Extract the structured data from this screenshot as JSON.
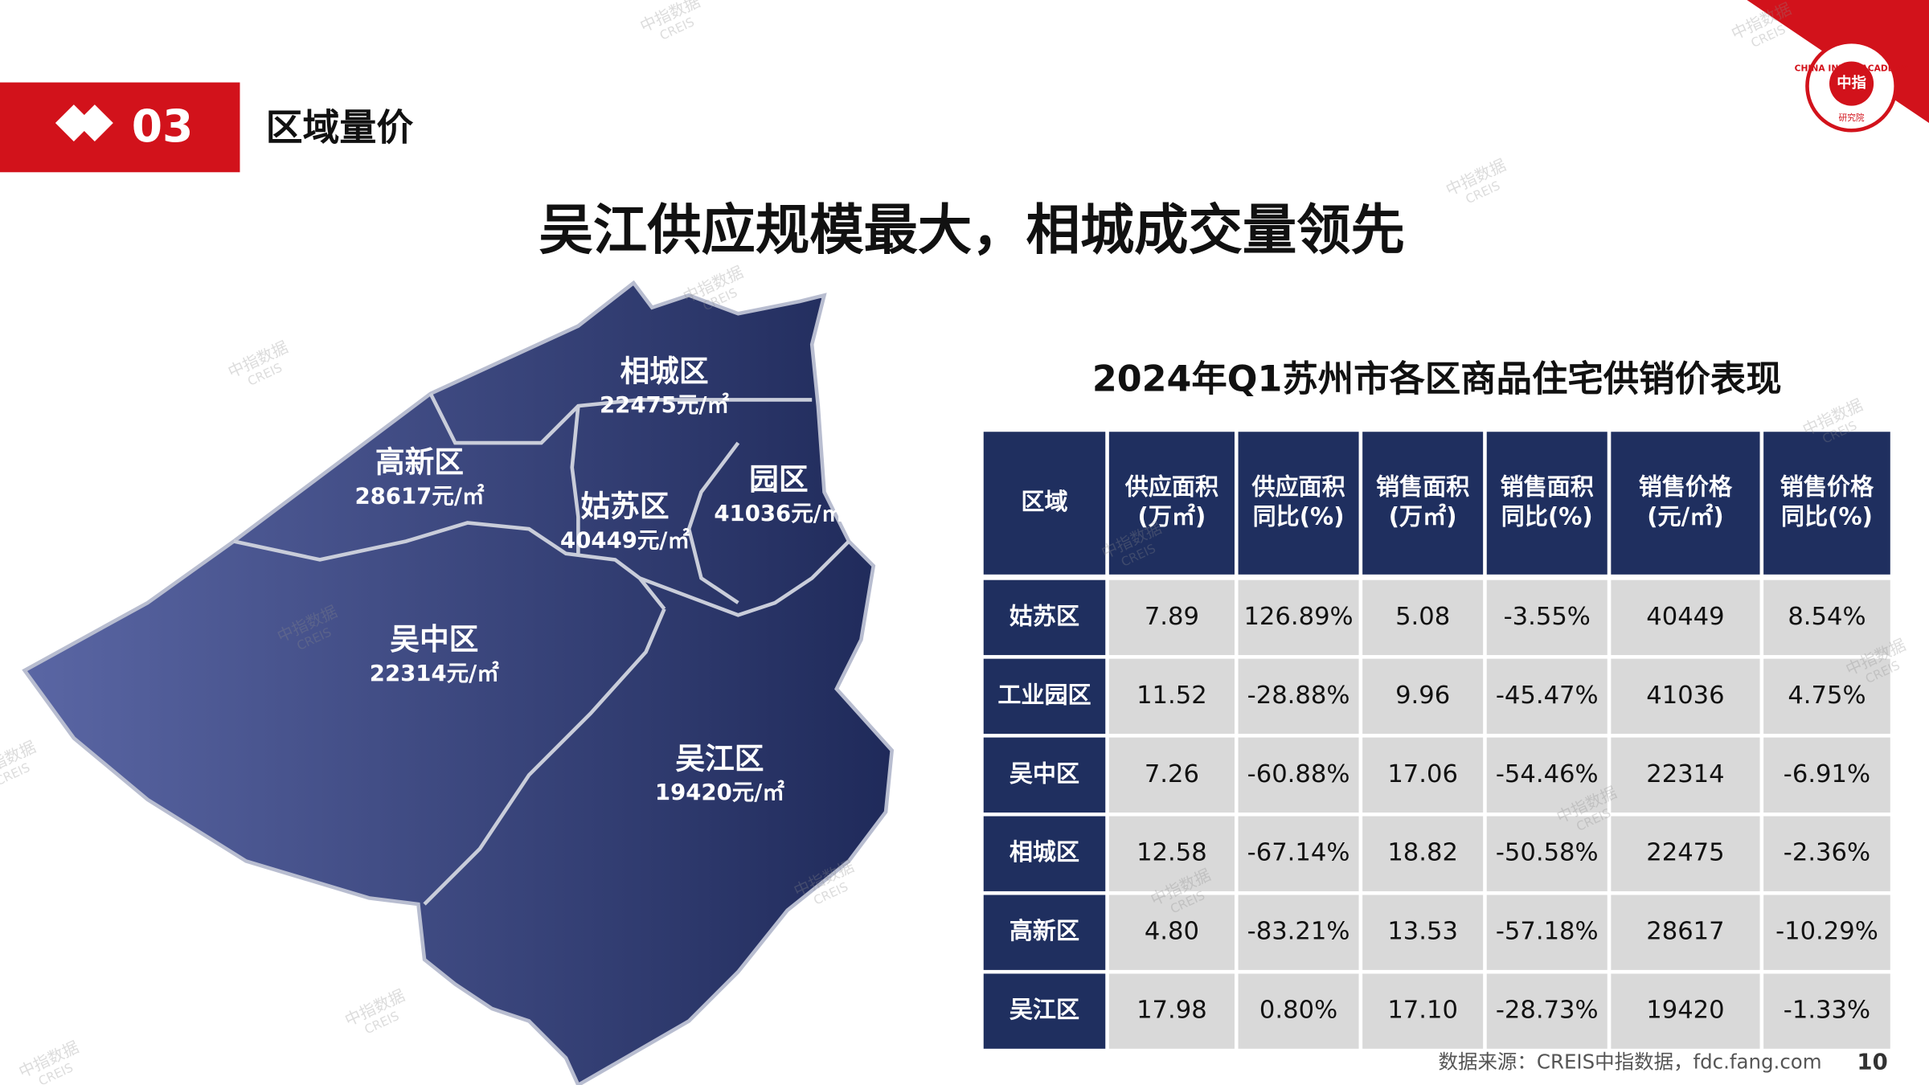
{
  "header": {
    "section_number": "03",
    "section_title": "区域量价"
  },
  "title": "吴江供应规模最大，相城成交量领先",
  "map": {
    "districts": [
      {
        "name": "相城区",
        "price": "22475元/㎡"
      },
      {
        "name": "高新区",
        "price": "28617元/㎡"
      },
      {
        "name": "姑苏区",
        "price": "40449元/㎡"
      },
      {
        "name": "园区",
        "price": "41036元/㎡"
      },
      {
        "name": "吴中区",
        "price": "22314元/㎡"
      },
      {
        "name": "吴江区",
        "price": "19420元/㎡"
      }
    ]
  },
  "table": {
    "title": "2024年Q1苏州市各区商品住宅供销价表现",
    "columns": [
      [
        "区域"
      ],
      [
        "供应面积",
        "(万㎡)"
      ],
      [
        "供应面积",
        "同比(%)"
      ],
      [
        "销售面积",
        "(万㎡)"
      ],
      [
        "销售面积",
        "同比(%)"
      ],
      [
        "销售价格",
        "(元/㎡)"
      ],
      [
        "销售价格",
        "同比(%)"
      ]
    ],
    "rows": [
      [
        "姑苏区",
        "7.89",
        "126.89%",
        "5.08",
        "-3.55%",
        "40449",
        "8.54%"
      ],
      [
        "工业园区",
        "11.52",
        "-28.88%",
        "9.96",
        "-45.47%",
        "41036",
        "4.75%"
      ],
      [
        "吴中区",
        "7.26",
        "-60.88%",
        "17.06",
        "-54.46%",
        "22314",
        "-6.91%"
      ],
      [
        "相城区",
        "12.58",
        "-67.14%",
        "18.82",
        "-50.58%",
        "22475",
        "-2.36%"
      ],
      [
        "高新区",
        "4.80",
        "-83.21%",
        "13.53",
        "-57.18%",
        "28617",
        "-10.29%"
      ],
      [
        "吴江区",
        "17.98",
        "0.80%",
        "17.10",
        "-28.73%",
        "19420",
        "-1.33%"
      ]
    ]
  },
  "source": "数据来源：CREIS中指数据，fdc.fang.com",
  "page_number": "10",
  "logo": {
    "ring_text": "CHINA INDEX ACADEMY",
    "center": "中指",
    "bottom": "研究院"
  },
  "watermark": {
    "cn": "中指数据",
    "en": "CREIS"
  }
}
